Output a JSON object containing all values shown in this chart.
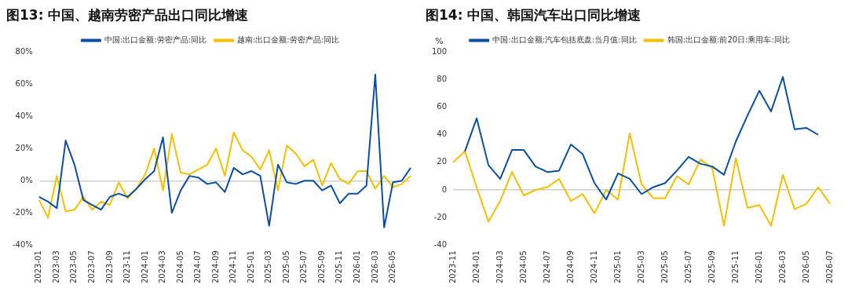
{
  "chart_data": [
    {
      "type": "line",
      "title": "图13: 中国、越南劳密产品出口同比增速",
      "categories": [
        "2023-01",
        null,
        "2023-03",
        null,
        "2023-05",
        null,
        "2023-07",
        null,
        "2023-09",
        null,
        "2023-11",
        null,
        "2024-01",
        null,
        "2024-03",
        null,
        "2024-05",
        null,
        "2024-07",
        null,
        "2024-09",
        null,
        "2024-11",
        null,
        "2025-01",
        null,
        "2025-03",
        null,
        "2025-05",
        null,
        "2025-07",
        null,
        "2025-09",
        null,
        "2025-11",
        null,
        "2026-01",
        null,
        "2026-03",
        null,
        "2026-05",
        null,
        null
      ],
      "series": [
        {
          "name": "中国:出口金额:劳密产品:同比",
          "color": "#0b4ea2",
          "values": [
            -10,
            -13,
            -17,
            25,
            10,
            -12,
            -15,
            -18,
            -10,
            -8,
            -10,
            -5,
            1,
            6,
            27,
            -20,
            -6,
            3,
            2,
            -2,
            -1,
            -7,
            8,
            4,
            6,
            3,
            -28,
            10,
            -1,
            -2,
            0,
            0,
            -6,
            -3,
            -14,
            -8,
            -8,
            -3,
            66,
            -29,
            -1,
            0,
            8
          ]
        },
        {
          "name": "越南:出口金额:劳密产品:同比",
          "color": "#f5c000",
          "values": [
            -12,
            -23,
            3,
            -19,
            -18,
            -10,
            -18,
            -13,
            -15,
            -1,
            -11,
            -5,
            4,
            20,
            -6,
            29,
            5,
            4,
            7,
            10,
            20,
            3,
            30,
            19,
            15,
            7,
            19,
            -6,
            22,
            17,
            9,
            13,
            -3,
            11,
            1,
            -2,
            6,
            6,
            -5,
            3,
            -4,
            -2,
            3
          ]
        }
      ],
      "ylim": [
        -40,
        80
      ],
      "yticks": [
        {
          "value": -40,
          "label": "-40%"
        },
        {
          "value": -20,
          "label": "-20%"
        },
        {
          "value": 0,
          "label": "0%"
        },
        {
          "value": 20,
          "label": "20%"
        },
        {
          "value": 40,
          "label": "40%"
        },
        {
          "value": 60,
          "label": "60%"
        },
        {
          "value": 80,
          "label": "80%"
        }
      ],
      "legend": "top",
      "line_style": "solid",
      "marker": "none"
    },
    {
      "type": "line",
      "title": "图14: 中国、韩国汽车出口同比增速",
      "ylabel": "%",
      "categories": [
        "2023-11",
        null,
        "2024-01",
        null,
        "2024-03",
        null,
        "2024-05",
        null,
        "2024-07",
        null,
        "2024-09",
        null,
        "2024-11",
        null,
        "2025-01",
        null,
        "2025-03",
        null,
        "2025-05",
        null,
        "2025-07",
        null,
        "2025-09",
        null,
        "2025-11",
        null,
        "2026-01",
        null,
        "2026-03",
        null,
        "2026-05",
        null,
        "2026-07"
      ],
      "series": [
        {
          "name": "中国:出口金额:汽车包括底盘:当月值:同比",
          "color": "#0b4ea2",
          "values": [
            null,
            28,
            52,
            18,
            8,
            29,
            29,
            17,
            13,
            14,
            33,
            26,
            5,
            -7,
            12,
            8,
            -3,
            2,
            5,
            14,
            24,
            19,
            17,
            11,
            35,
            54,
            72,
            57,
            82,
            44,
            45,
            40,
            null
          ]
        },
        {
          "name": "韩国:出口金额:前20日:乘用车:同比",
          "color": "#f5c000",
          "values": [
            20,
            28,
            2,
            -23,
            -8,
            13,
            -4,
            0,
            2,
            8,
            -8,
            -3,
            -17,
            0,
            -7,
            41,
            4,
            -6,
            -6,
            10,
            4,
            22,
            16,
            -26,
            23,
            -13,
            -11,
            -26,
            11,
            -14,
            -10,
            2,
            -10
          ]
        }
      ],
      "ylim": [
        -40,
        100
      ],
      "yticks": [
        -40,
        -20,
        0,
        20,
        40,
        60,
        80,
        100
      ],
      "legend": "top",
      "line_style": "solid",
      "marker": "none"
    }
  ]
}
